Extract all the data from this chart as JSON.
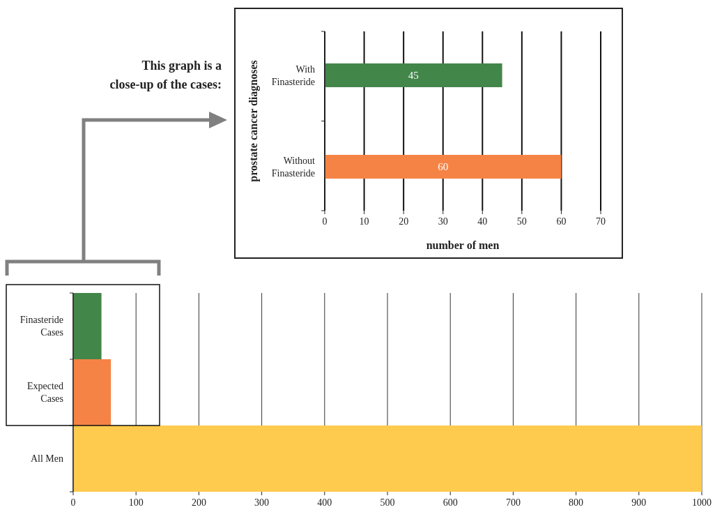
{
  "chart_data": [
    {
      "type": "bar",
      "orientation": "horizontal",
      "categories": [
        "With Finasteride",
        "Without Finasteride"
      ],
      "values": [
        45,
        60
      ],
      "colors": [
        "#43864a",
        "#f58345"
      ],
      "xlim": [
        0,
        70
      ],
      "xticks": [
        0,
        10,
        20,
        30,
        40,
        50,
        60,
        70
      ],
      "xlabel": "number of men",
      "ylabel": "prostate cancer diagnoses",
      "grid": "x",
      "data_labels": true,
      "annotations": [
        "This graph is a close-up of the cases:"
      ]
    },
    {
      "type": "bar",
      "orientation": "horizontal",
      "categories": [
        "Finasteride Cases",
        "Expected Cases",
        "All Men"
      ],
      "values": [
        45,
        60,
        1000
      ],
      "colors": [
        "#43864a",
        "#f58345",
        "#fecb4f"
      ],
      "xlim": [
        0,
        1000
      ],
      "xticks": [
        0,
        100,
        200,
        300,
        400,
        500,
        600,
        700,
        800,
        900,
        1000
      ],
      "grid": "x"
    }
  ]
}
